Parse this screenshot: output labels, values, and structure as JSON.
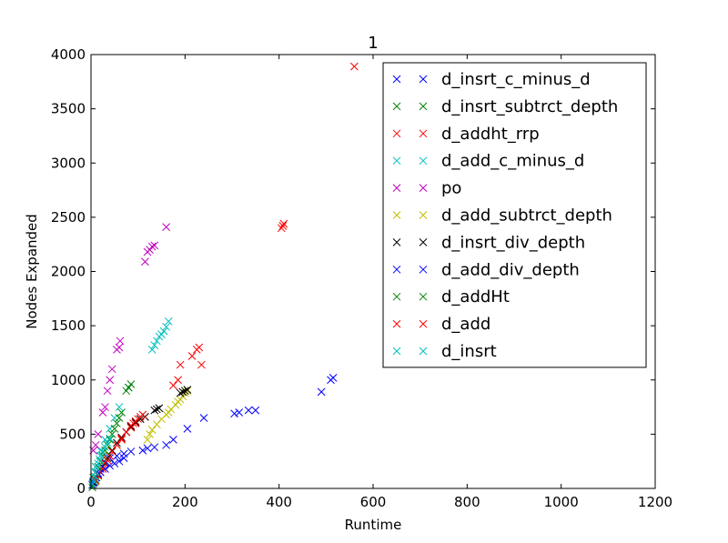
{
  "chart_data": {
    "type": "scatter",
    "title": "1",
    "xlabel": "Runtime",
    "ylabel": "Nodes Expanded",
    "xlim": [
      0,
      1200
    ],
    "ylim": [
      0,
      4000
    ],
    "x_ticks": [
      "0",
      "200",
      "400",
      "600",
      "800",
      "1000",
      "1200"
    ],
    "y_ticks": [
      "0",
      "500",
      "1000",
      "1500",
      "2000",
      "2500",
      "3000",
      "3500",
      "4000"
    ],
    "grid": false,
    "legend_position": "top-right",
    "marker": "x",
    "series": [
      {
        "name": "d_insrt_c_minus_d",
        "color": "#0000ff",
        "x": [
          3,
          8,
          15,
          20,
          30,
          40,
          55,
          70,
          85,
          110,
          120,
          135,
          160,
          175,
          205,
          240,
          305,
          315,
          335,
          350,
          490,
          510,
          515
        ],
        "y": [
          30,
          80,
          140,
          180,
          240,
          280,
          300,
          320,
          340,
          350,
          370,
          380,
          400,
          450,
          550,
          650,
          690,
          700,
          720,
          720,
          890,
          1000,
          1020
        ]
      },
      {
        "name": "d_insrt_subtrct_depth",
        "color": "#008000",
        "x": [
          3,
          5,
          8,
          10,
          12,
          15
        ],
        "y": [
          10,
          30,
          60,
          80,
          100,
          130
        ]
      },
      {
        "name": "d_addht_rrp",
        "color": "#ff0000",
        "x": [
          20,
          30,
          40,
          55,
          65,
          75,
          85,
          95,
          105,
          115,
          175,
          185,
          190,
          215,
          225,
          230,
          235,
          405,
          408,
          410,
          560
        ],
        "y": [
          150,
          230,
          300,
          400,
          450,
          520,
          560,
          600,
          640,
          660,
          950,
          1000,
          1140,
          1220,
          1280,
          1300,
          1140,
          2400,
          2420,
          2440,
          3890
        ]
      },
      {
        "name": "d_add_c_minus_d",
        "color": "#00bfbf",
        "x": [
          10,
          20,
          30,
          40,
          50,
          60,
          80,
          130,
          135,
          140,
          145,
          150,
          155,
          160,
          165
        ],
        "y": [
          200,
          350,
          450,
          550,
          650,
          750,
          930,
          1280,
          1320,
          1360,
          1400,
          1420,
          1450,
          1490,
          1540
        ]
      },
      {
        "name": "po",
        "color": "#bf00bf",
        "x": [
          5,
          10,
          15,
          25,
          30,
          35,
          40,
          45,
          55,
          60,
          62,
          115,
          120,
          125,
          130,
          135,
          160
        ],
        "y": [
          350,
          400,
          500,
          700,
          750,
          900,
          1000,
          1100,
          1280,
          1300,
          1360,
          2090,
          2180,
          2200,
          2230,
          2240,
          2410
        ]
      },
      {
        "name": "d_add_subtrct_depth",
        "color": "#bfbf00",
        "x": [
          120,
          125,
          130,
          140,
          150,
          160,
          165,
          170,
          180,
          185,
          190,
          195,
          200,
          205
        ],
        "y": [
          450,
          500,
          540,
          590,
          640,
          680,
          700,
          730,
          770,
          800,
          820,
          850,
          880,
          900
        ]
      },
      {
        "name": "d_insrt_div_depth",
        "color": "#000000",
        "x": [
          5,
          15,
          25,
          35,
          45,
          55,
          65,
          75,
          85,
          95,
          105,
          115,
          135,
          140,
          145,
          190,
          195,
          200,
          205
        ],
        "y": [
          50,
          120,
          200,
          280,
          350,
          420,
          470,
          520,
          570,
          610,
          640,
          660,
          720,
          730,
          740,
          880,
          890,
          900,
          910
        ]
      },
      {
        "name": "d_add_div_depth",
        "color": "#0000ff",
        "x": [
          5,
          10,
          15,
          20,
          30,
          40,
          50,
          60,
          70
        ],
        "y": [
          60,
          100,
          130,
          150,
          180,
          210,
          230,
          250,
          280
        ]
      },
      {
        "name": "d_addHt",
        "color": "#008000",
        "x": [
          5,
          10,
          15,
          20,
          25,
          30,
          35,
          40,
          45,
          50,
          55,
          60,
          65,
          75,
          80,
          85
        ],
        "y": [
          100,
          150,
          200,
          250,
          300,
          350,
          400,
          450,
          500,
          550,
          600,
          650,
          700,
          900,
          930,
          960
        ]
      },
      {
        "name": "d_add",
        "color": "#ff0000",
        "x": [
          10,
          15,
          25,
          35,
          45,
          55,
          65,
          75,
          85,
          90,
          95,
          100,
          105,
          110
        ],
        "y": [
          70,
          120,
          180,
          260,
          340,
          400,
          460,
          520,
          580,
          600,
          620,
          640,
          660,
          680
        ]
      },
      {
        "name": "d_insrt",
        "color": "#00bfbf",
        "x": [
          3,
          5,
          8,
          10,
          12,
          15,
          18,
          20,
          25,
          30,
          35,
          40
        ],
        "y": [
          40,
          70,
          110,
          150,
          190,
          230,
          270,
          300,
          340,
          380,
          420,
          460
        ]
      }
    ]
  }
}
